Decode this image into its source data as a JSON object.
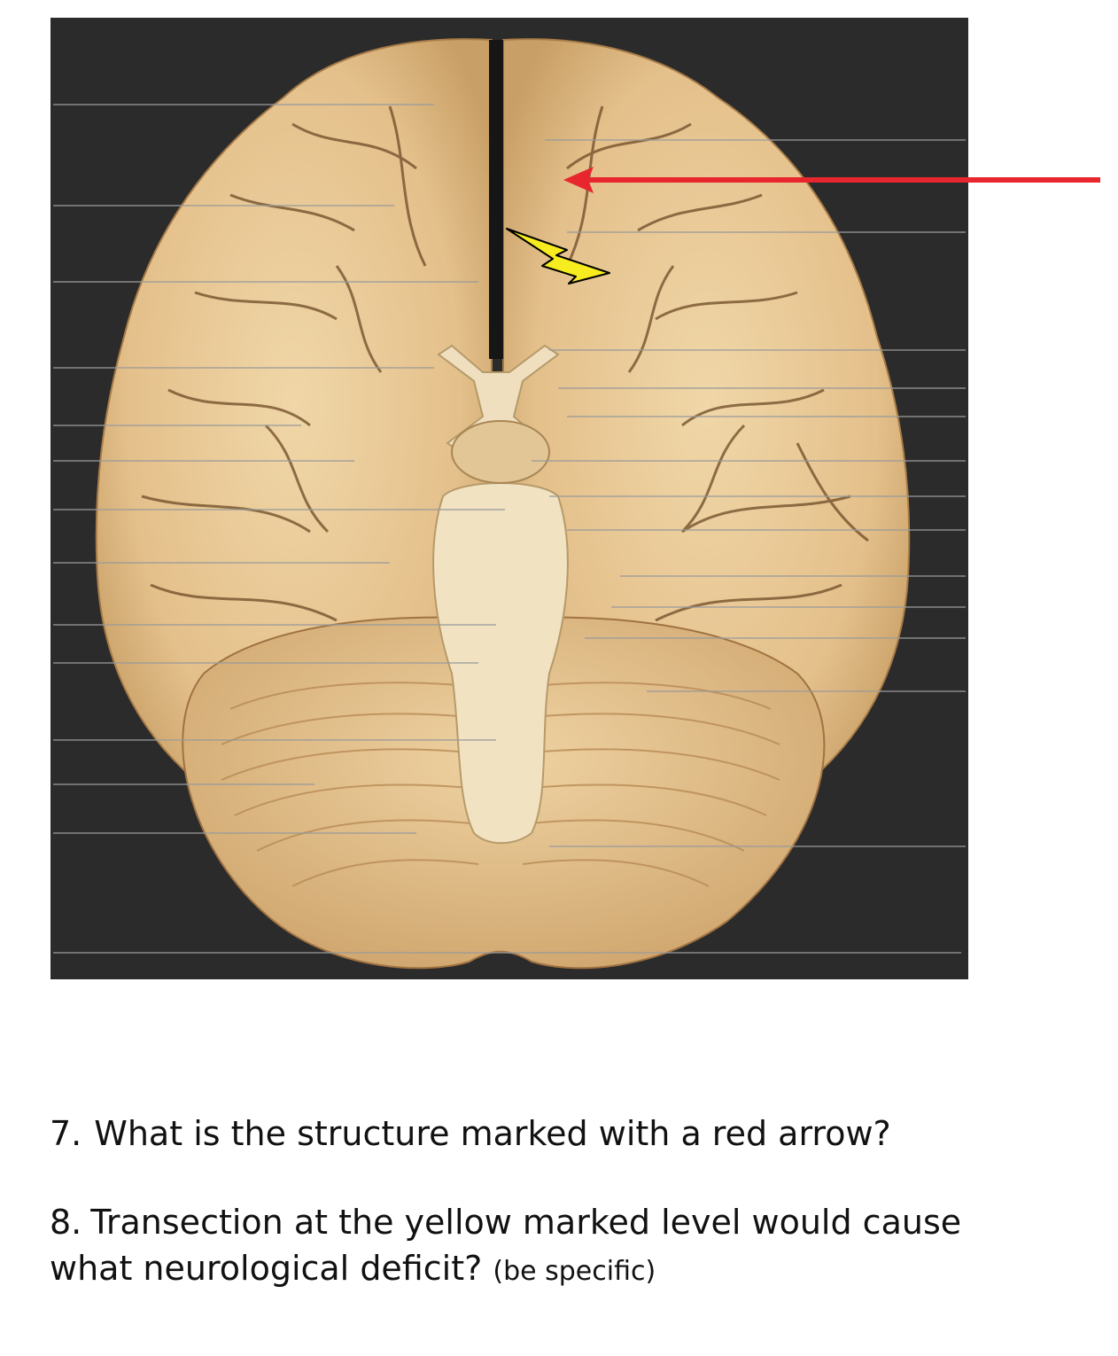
{
  "figure": {
    "subject": "inferior view of the human brain",
    "markers": {
      "red_arrow_color": "#e8262e",
      "yellow_bolt_color": "#f7ec1f"
    }
  },
  "questions": [
    {
      "number": "7.",
      "text": "What is the structure marked with a red arrow?"
    },
    {
      "number": "8.",
      "text_line1": "Transection at the yellow marked level would cause",
      "text_line2": "what neurological deficit?",
      "note": "(be specific)"
    }
  ]
}
